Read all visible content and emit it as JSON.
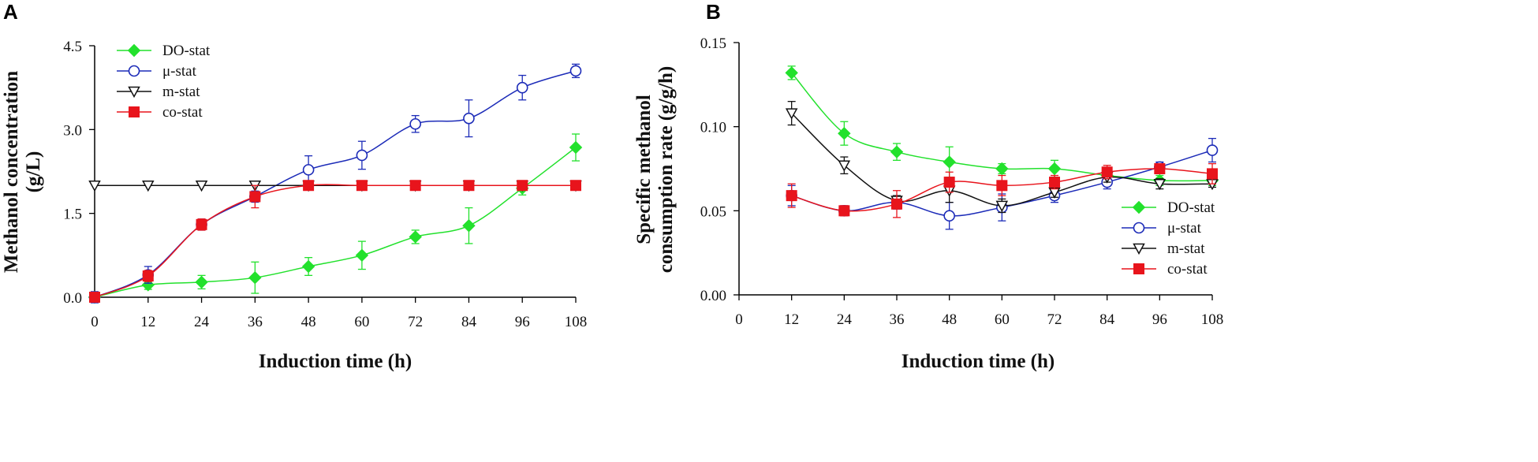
{
  "chart_data": [
    {
      "panel_label": "A",
      "type": "line",
      "xlabel": "Induction time (h)",
      "ylabel_lines": [
        "Methanol concentration",
        "(g/L)"
      ],
      "xlim": [
        0,
        108
      ],
      "ylim": [
        0,
        4.5
      ],
      "x_ticks": [
        "0",
        "12",
        "24",
        "36",
        "48",
        "60",
        "72",
        "84",
        "96",
        "108"
      ],
      "y_ticks": [
        "0.0",
        "1.5",
        "3.0",
        "4.5"
      ],
      "legend_position": "top-left",
      "series": [
        {
          "name": "DO-stat",
          "color": "#22e12c",
          "marker": "diamond",
          "x": [
            0,
            12,
            24,
            36,
            48,
            60,
            72,
            84,
            96,
            108
          ],
          "values": [
            0.0,
            0.22,
            0.27,
            0.35,
            0.55,
            0.75,
            1.08,
            1.28,
            1.95,
            2.68
          ],
          "errors": [
            0.05,
            0.08,
            0.12,
            0.28,
            0.16,
            0.25,
            0.12,
            0.32,
            0.12,
            0.24
          ]
        },
        {
          "name": "μ-stat",
          "color": "#1c2bb8",
          "marker": "circle-open",
          "x": [
            0,
            12,
            24,
            36,
            48,
            60,
            72,
            84,
            96,
            108
          ],
          "values": [
            0.0,
            0.4,
            1.3,
            1.8,
            2.28,
            2.54,
            3.1,
            3.2,
            3.75,
            4.05
          ],
          "errors": [
            0.1,
            0.15,
            0.1,
            0.1,
            0.25,
            0.25,
            0.15,
            0.33,
            0.22,
            0.12
          ]
        },
        {
          "name": "m-stat",
          "color": "#111111",
          "marker": "triangle-down-open",
          "x": [
            0,
            12,
            24,
            36,
            48,
            60,
            72,
            84,
            96,
            108
          ],
          "values": [
            2.0,
            2.0,
            2.0,
            2.0,
            2.0,
            2.0,
            2.0,
            2.0,
            2.0,
            2.0
          ],
          "errors": [
            0,
            0,
            0,
            0,
            0,
            0,
            0,
            0,
            0,
            0
          ]
        },
        {
          "name": "co-stat",
          "color": "#e8141c",
          "marker": "square",
          "x": [
            0,
            12,
            24,
            36,
            48,
            60,
            72,
            84,
            96,
            108
          ],
          "values": [
            0.0,
            0.38,
            1.3,
            1.8,
            2.0,
            2.0,
            2.0,
            2.0,
            2.0,
            2.0
          ],
          "errors": [
            0.03,
            0.1,
            0.1,
            0.2,
            0.03,
            0.03,
            0.03,
            0.03,
            0.03,
            0.03
          ]
        }
      ]
    },
    {
      "panel_label": "B",
      "type": "line",
      "xlabel": "Induction time (h)",
      "ylabel_lines": [
        "Specific methanol",
        "consumption rate (g/g/h)"
      ],
      "xlim": [
        0,
        108
      ],
      "ylim": [
        0,
        0.15
      ],
      "x_ticks": [
        "0",
        "12",
        "24",
        "36",
        "48",
        "60",
        "72",
        "84",
        "96",
        "108"
      ],
      "y_ticks": [
        "0.00",
        "0.05",
        "0.10",
        "0.15"
      ],
      "legend_position": "bottom-right",
      "series": [
        {
          "name": "DO-stat",
          "color": "#22e12c",
          "marker": "diamond",
          "x": [
            12,
            24,
            36,
            48,
            60,
            72,
            84,
            96,
            108
          ],
          "values": [
            0.132,
            0.096,
            0.085,
            0.079,
            0.075,
            0.075,
            0.071,
            0.068,
            0.068
          ],
          "errors": [
            0.004,
            0.007,
            0.005,
            0.009,
            0.003,
            0.005,
            0.003,
            0.003,
            0.003
          ]
        },
        {
          "name": "μ-stat",
          "color": "#1c2bb8",
          "marker": "circle-open",
          "x": [
            12,
            24,
            36,
            48,
            60,
            72,
            84,
            96,
            108
          ],
          "values": [
            0.059,
            0.05,
            0.055,
            0.047,
            0.052,
            0.059,
            0.067,
            0.076,
            0.086
          ],
          "errors": [
            0.006,
            0.003,
            0.004,
            0.008,
            0.008,
            0.004,
            0.004,
            0.003,
            0.007
          ]
        },
        {
          "name": "m-stat",
          "color": "#111111",
          "marker": "triangle-down-open",
          "x": [
            12,
            24,
            36,
            48,
            60,
            72,
            84,
            96,
            108
          ],
          "values": [
            0.108,
            0.077,
            0.056,
            0.062,
            0.053,
            0.061,
            0.07,
            0.066,
            0.066
          ],
          "errors": [
            0.007,
            0.005,
            0.003,
            0.007,
            0.004,
            0.003,
            0.003,
            0.003,
            0.002
          ]
        },
        {
          "name": "co-stat",
          "color": "#e8141c",
          "marker": "square",
          "x": [
            12,
            24,
            36,
            48,
            60,
            72,
            84,
            96,
            108
          ],
          "values": [
            0.059,
            0.05,
            0.054,
            0.067,
            0.065,
            0.067,
            0.073,
            0.075,
            0.072
          ],
          "errors": [
            0.007,
            0.003,
            0.008,
            0.006,
            0.006,
            0.004,
            0.004,
            0.003,
            0.006
          ]
        }
      ]
    }
  ]
}
